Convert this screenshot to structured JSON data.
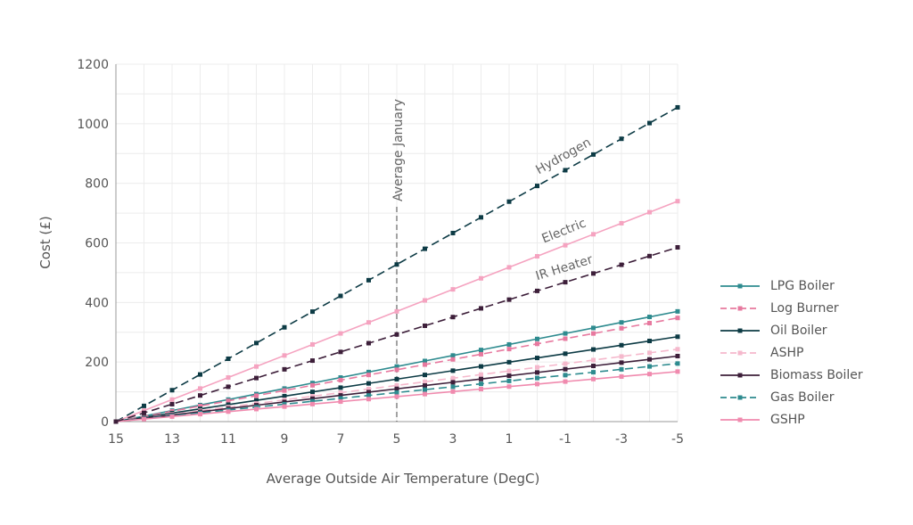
{
  "chart_data": {
    "type": "line",
    "xlabel": "Average Outside Air Temperature (DegC)",
    "ylabel": "Cost (£)",
    "xlim": [
      15,
      -5
    ],
    "ylim": [
      0,
      1200
    ],
    "x_ticks": [
      "15",
      "13",
      "11",
      "9",
      "7",
      "5",
      "3",
      "1",
      "-1",
      "-3",
      "-5"
    ],
    "y_ticks": [
      "0",
      "200",
      "400",
      "600",
      "800",
      "1000",
      "1200"
    ],
    "grid": true,
    "legend_position": "right",
    "annotation": {
      "label": "Average January",
      "x": 5
    },
    "x": [
      15,
      14,
      13,
      12,
      11,
      10,
      9,
      8,
      7,
      6,
      5,
      4,
      3,
      2,
      1,
      0,
      -1,
      -2,
      -3,
      -4,
      -5
    ],
    "series": [
      {
        "name": "LPG Boiler",
        "color": "#2e8b8f",
        "dashed": false,
        "end_value": 370
      },
      {
        "name": "Log Burner",
        "color": "#e7799f",
        "dashed": true,
        "end_value": 348
      },
      {
        "name": "Oil Boiler",
        "color": "#0d3b45",
        "dashed": false,
        "end_value": 285
      },
      {
        "name": "ASHP",
        "color": "#f5b8cc",
        "dashed": true,
        "end_value": 243
      },
      {
        "name": "Biomass Boiler",
        "color": "#3d1f3a",
        "dashed": false,
        "end_value": 220
      },
      {
        "name": "Gas Boiler",
        "color": "#2e8b8f",
        "dashed": true,
        "end_value": 195
      },
      {
        "name": "GSHP",
        "color": "#f08aae",
        "dashed": false,
        "end_value": 168
      },
      {
        "name": "Hydrogen",
        "color": "#0d3b45",
        "dashed": true,
        "end_value": 1055,
        "label": "Hydrogen"
      },
      {
        "name": "Electric",
        "color": "#f5a3c0",
        "dashed": false,
        "end_value": 740,
        "label": "Electric"
      },
      {
        "name": "IR Heater",
        "color": "#3d1f3a",
        "dashed": true,
        "end_value": 585,
        "label": "IR Heater"
      }
    ],
    "legend": [
      "LPG Boiler",
      "Log Burner",
      "Oil Boiler",
      "ASHP",
      "Biomass Boiler",
      "Gas Boiler",
      "GSHP"
    ]
  }
}
